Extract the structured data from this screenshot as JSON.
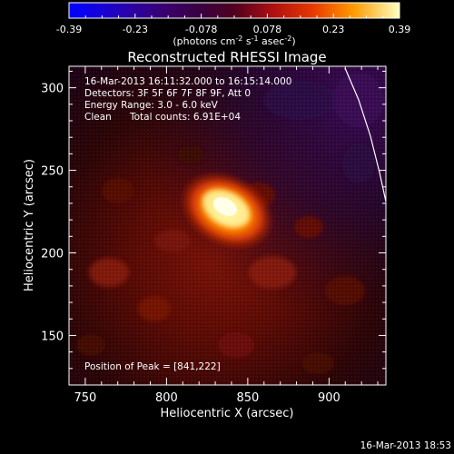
{
  "colorbar": {
    "tick_values": [
      "-0.39",
      "-0.23",
      "-0.078",
      "0.078",
      "0.23",
      "0.39"
    ],
    "units_main": "(photons cm",
    "units_exp1": "-2",
    "units_mid": " s",
    "units_exp2": "-1",
    "units_end": " asec",
    "units_exp3": "-2",
    "units_close": ")"
  },
  "image_title": "Reconstructed RHESSI Image",
  "info": {
    "time_range": "16-Mar-2013 16:11:32.000 to 16:15:14.000",
    "detectors": "Detectors: 3F 5F 6F 7F 8F 9F, Att 0",
    "energy_range": "Energy Range: 3.0 - 6.0 keV",
    "clean_label": "Clean",
    "total_counts": "Total counts: 6.91E+04"
  },
  "peak_position": "Position of Peak = [841,222]",
  "axes": {
    "x_label": "Heliocentric X (arcsec)",
    "y_label": "Heliocentric Y (arcsec)",
    "x_ticks": [
      "750",
      "800",
      "850",
      "900"
    ],
    "y_ticks": [
      "300",
      "250",
      "200",
      "150"
    ],
    "x_range": [
      740,
      935
    ],
    "y_range": [
      120,
      313
    ]
  },
  "timestamp": "16-Mar-2013 18:53",
  "colors": {
    "background": "#000000",
    "text": "#ffffff"
  }
}
